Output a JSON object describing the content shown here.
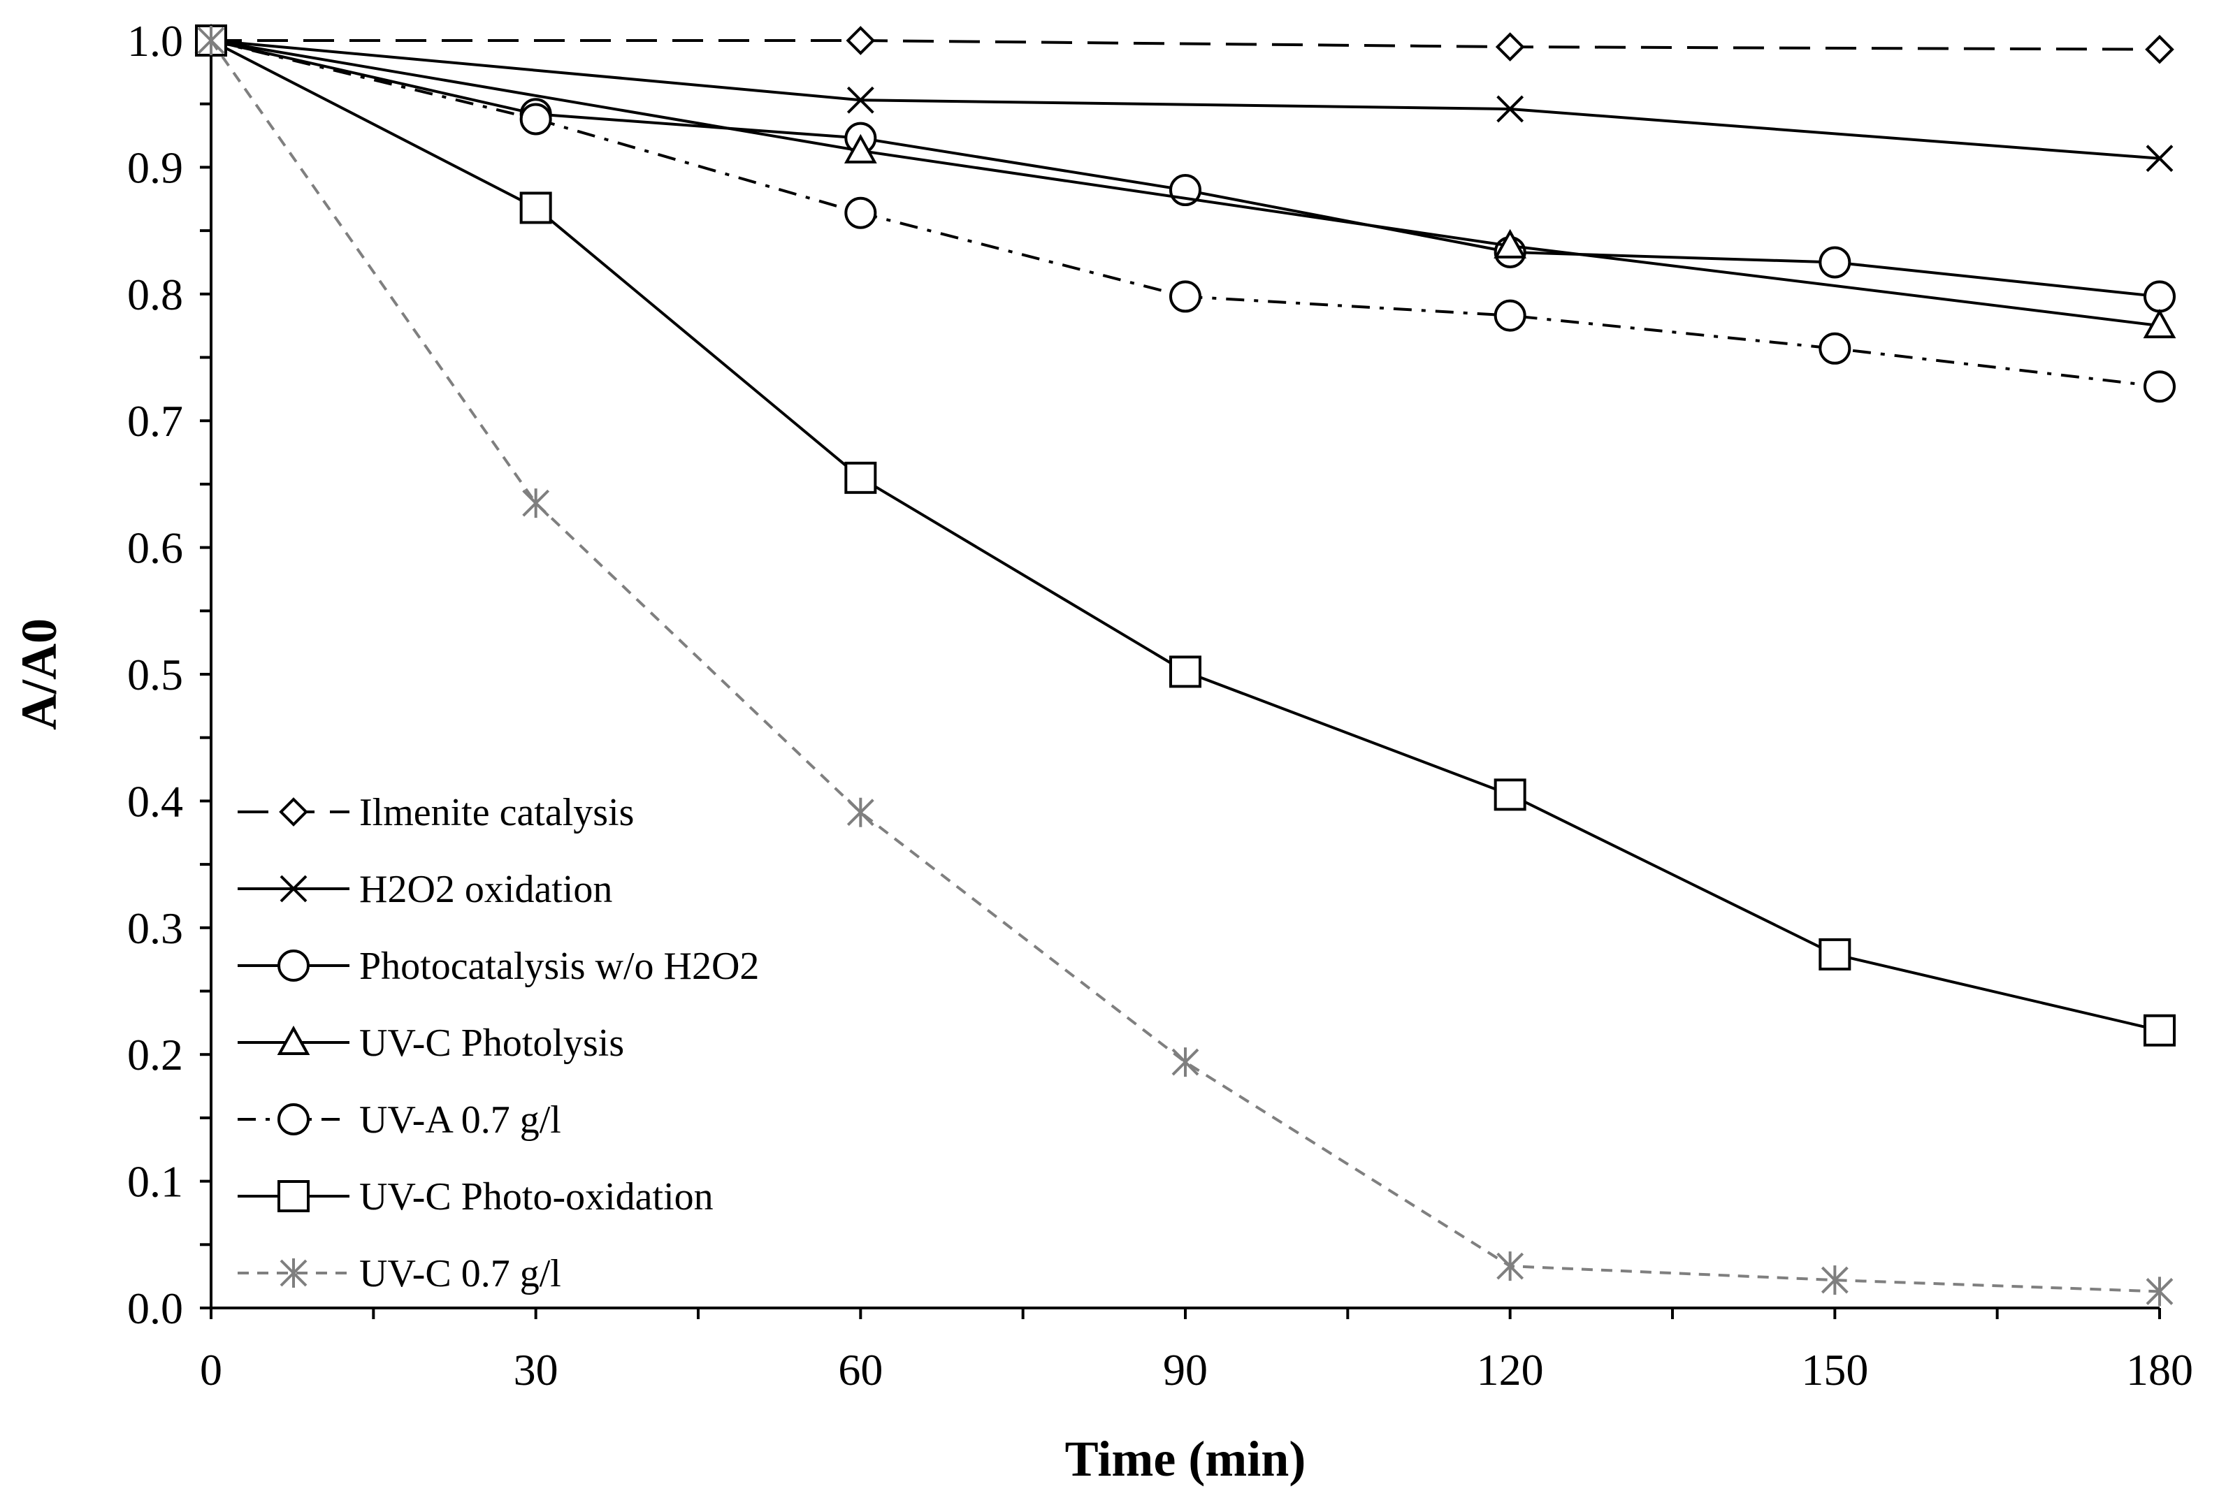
{
  "chart_data": {
    "type": "line",
    "title": "",
    "xlabel": "Time (min)",
    "ylabel": "A/A0",
    "xlim": [
      0,
      180
    ],
    "ylim": [
      0,
      1
    ],
    "x_ticks": [
      0,
      30,
      60,
      90,
      120,
      150,
      180
    ],
    "x_tick_labels": [
      "0",
      "30",
      "60",
      "90",
      "120",
      "150",
      "180"
    ],
    "y_ticks": [
      0,
      0.1,
      0.2,
      0.3,
      0.4,
      0.5,
      0.6,
      0.7,
      0.8,
      0.9,
      1.0
    ],
    "y_tick_labels": [
      "0.0",
      "0.1",
      "0.2",
      "0.3",
      "0.4",
      "0.5",
      "0.6",
      "0.7",
      "0.8",
      "0.9",
      "1.0"
    ],
    "grid": false,
    "legend_position": "bottom-left",
    "series": [
      {
        "name": "Ilmenite catalysis",
        "marker": "diamond",
        "dash": "long-dash",
        "color": "#000000",
        "x": [
          0,
          60,
          120,
          180
        ],
        "y": [
          1.0,
          1.0,
          0.995,
          0.993
        ]
      },
      {
        "name": "H2O2 oxidation",
        "marker": "x",
        "dash": "solid",
        "color": "#000000",
        "x": [
          0,
          60,
          120,
          180
        ],
        "y": [
          1.0,
          0.953,
          0.946,
          0.907
        ]
      },
      {
        "name": "Photocatalysis w/o H2O2",
        "marker": "circle",
        "dash": "solid",
        "color": "#000000",
        "x": [
          0,
          30,
          60,
          90,
          120,
          150,
          180
        ],
        "y": [
          1.0,
          0.942,
          0.923,
          0.882,
          0.833,
          0.825,
          0.798
        ]
      },
      {
        "name": "UV-C Photolysis",
        "marker": "triangle",
        "dash": "solid",
        "color": "#000000",
        "x": [
          0,
          60,
          120,
          180
        ],
        "y": [
          1.0,
          0.913,
          0.838,
          0.775
        ]
      },
      {
        "name": "UV-A 0.7 g/l",
        "marker": "circle",
        "dash": "dash-dot",
        "color": "#000000",
        "x": [
          0,
          30,
          60,
          90,
          120,
          150,
          180
        ],
        "y": [
          1.0,
          0.938,
          0.864,
          0.798,
          0.783,
          0.757,
          0.727
        ]
      },
      {
        "name": "UV-C Photo-oxidation",
        "marker": "square",
        "dash": "solid",
        "color": "#000000",
        "x": [
          0,
          30,
          60,
          90,
          120,
          150,
          180
        ],
        "y": [
          1.0,
          0.868,
          0.655,
          0.502,
          0.405,
          0.279,
          0.219
        ]
      },
      {
        "name": "UV-C 0.7 g/l",
        "marker": "asterisk",
        "dash": "short-dash",
        "color": "#7f7f7f",
        "x": [
          0,
          30,
          60,
          90,
          120,
          150,
          180
        ],
        "y": [
          1.0,
          0.635,
          0.391,
          0.194,
          0.033,
          0.022,
          0.013
        ]
      }
    ]
  }
}
